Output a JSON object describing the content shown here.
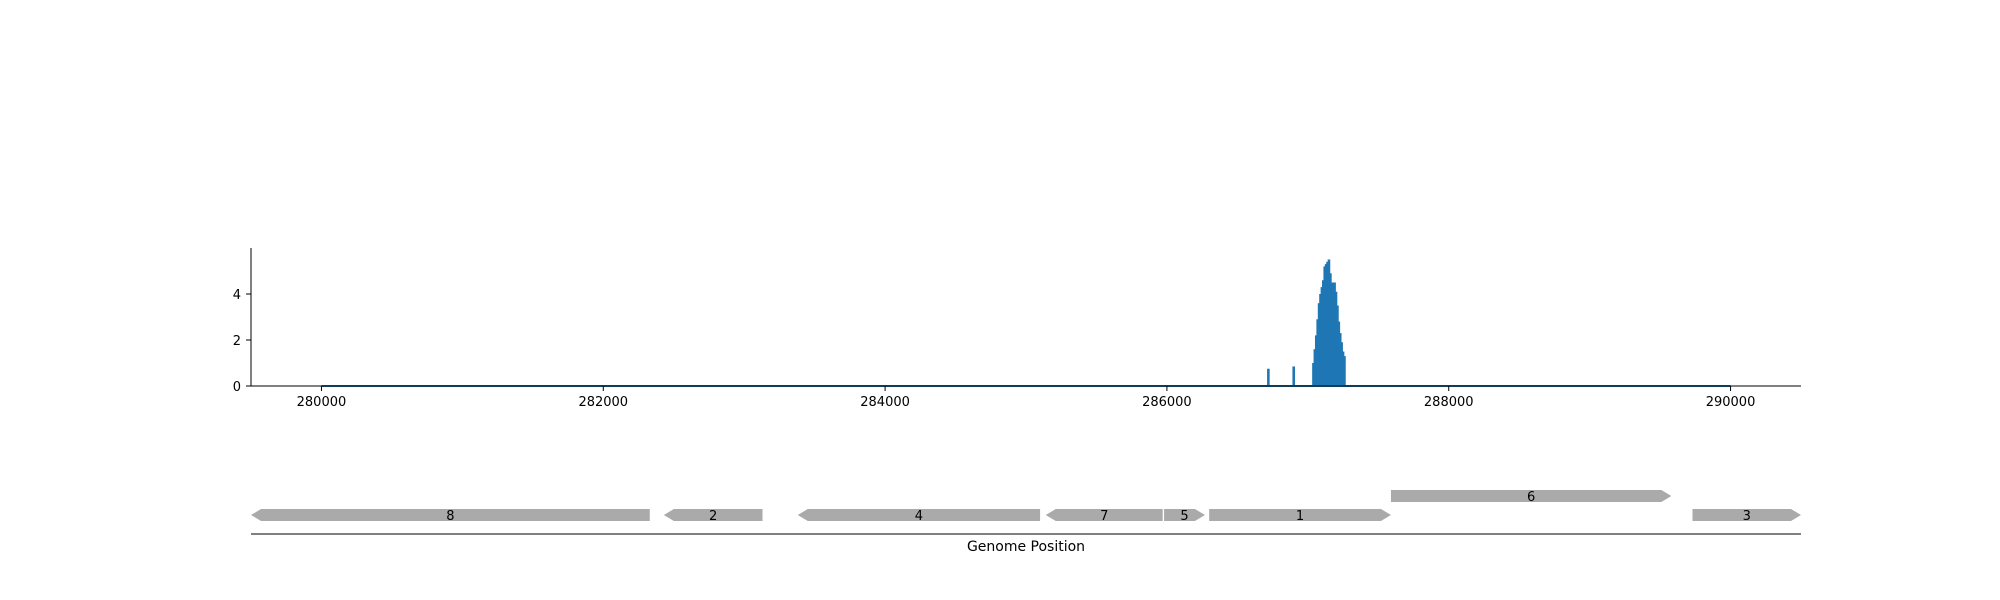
{
  "chart_data": [
    {
      "type": "bar",
      "title": "",
      "xlabel": "",
      "ylabel": "",
      "xlim": [
        279500,
        290500
      ],
      "ylim": [
        0,
        6
      ],
      "grid": false,
      "color": "#1f77b4",
      "xticks": [
        280000,
        282000,
        284000,
        286000,
        288000,
        290000
      ],
      "xtick_labels": [
        "280000",
        "282000",
        "284000",
        "286000",
        "288000",
        "290000"
      ],
      "yticks": [
        0,
        2,
        4
      ],
      "ytick_labels": [
        "0",
        "2",
        "4"
      ],
      "baseline": {
        "x": [
          280000,
          290000
        ],
        "y": 0
      },
      "x": [
        286720,
        286900,
        287040,
        287050,
        287060,
        287070,
        287080,
        287090,
        287100,
        287110,
        287120,
        287130,
        287140,
        287150,
        287160,
        287170,
        287180,
        287190,
        287200,
        287210,
        287220,
        287230,
        287240,
        287250,
        287260
      ],
      "values": [
        0.75,
        0.85,
        1.0,
        1.6,
        2.2,
        2.9,
        3.6,
        4.0,
        4.3,
        4.6,
        5.2,
        5.3,
        5.4,
        5.5,
        4.9,
        4.5,
        4.5,
        4.5,
        4.1,
        3.5,
        2.8,
        2.3,
        1.9,
        1.5,
        1.3
      ]
    },
    {
      "type": "gene_track",
      "xlabel": "Genome Position",
      "color": "#aaaaaa",
      "genes": [
        {
          "label": "8",
          "start": 279500,
          "end": 282330,
          "strand": "-",
          "row": 0
        },
        {
          "label": "2",
          "start": 282430,
          "end": 283130,
          "strand": "-",
          "row": 0
        },
        {
          "label": "4",
          "start": 283380,
          "end": 285100,
          "strand": "-",
          "row": 0
        },
        {
          "label": "7",
          "start": 285140,
          "end": 285970,
          "strand": "-",
          "row": 0
        },
        {
          "label": "5",
          "start": 285980,
          "end": 286270,
          "strand": "+",
          "row": 0
        },
        {
          "label": "1",
          "start": 286300,
          "end": 287590,
          "strand": "+",
          "row": 0
        },
        {
          "label": "6",
          "start": 287590,
          "end": 289580,
          "strand": "+",
          "row": 1
        },
        {
          "label": "3",
          "start": 289730,
          "end": 290500,
          "strand": "+",
          "row": 0
        }
      ]
    }
  ]
}
